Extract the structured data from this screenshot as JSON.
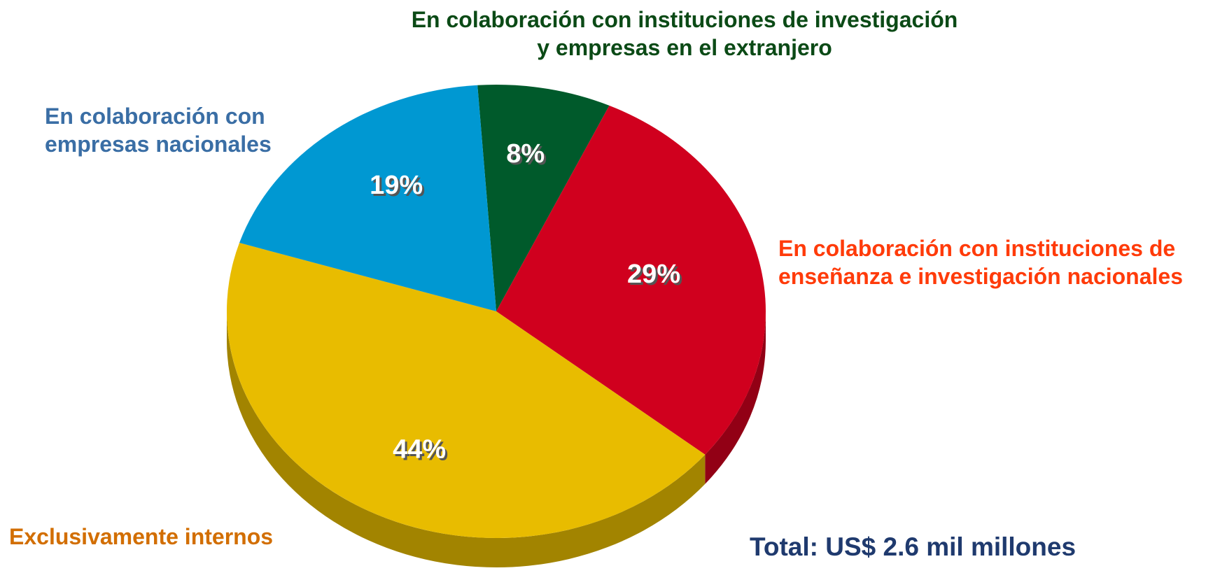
{
  "chart_data": {
    "type": "pie",
    "categories": [
      "En colaboración con instituciones de investigación y empresas en el extranjero",
      "En colaboración con instituciones de enseñanza e investigación nacionales",
      "Exclusivamente internos",
      "En colaboración con empresas nacionales"
    ],
    "values": [
      8,
      29,
      44,
      19
    ],
    "value_labels": [
      "8%",
      "29%",
      "44%",
      "19%"
    ],
    "colors": [
      "#005a2b",
      "#d0001e",
      "#e8bc00",
      "#0098d2"
    ],
    "label_colors": [
      "#0b4a16",
      "#ff3b0a",
      "#d26e00",
      "#3a6ea5"
    ],
    "annotation": "Total: US$ 2.6 mil millones"
  }
}
